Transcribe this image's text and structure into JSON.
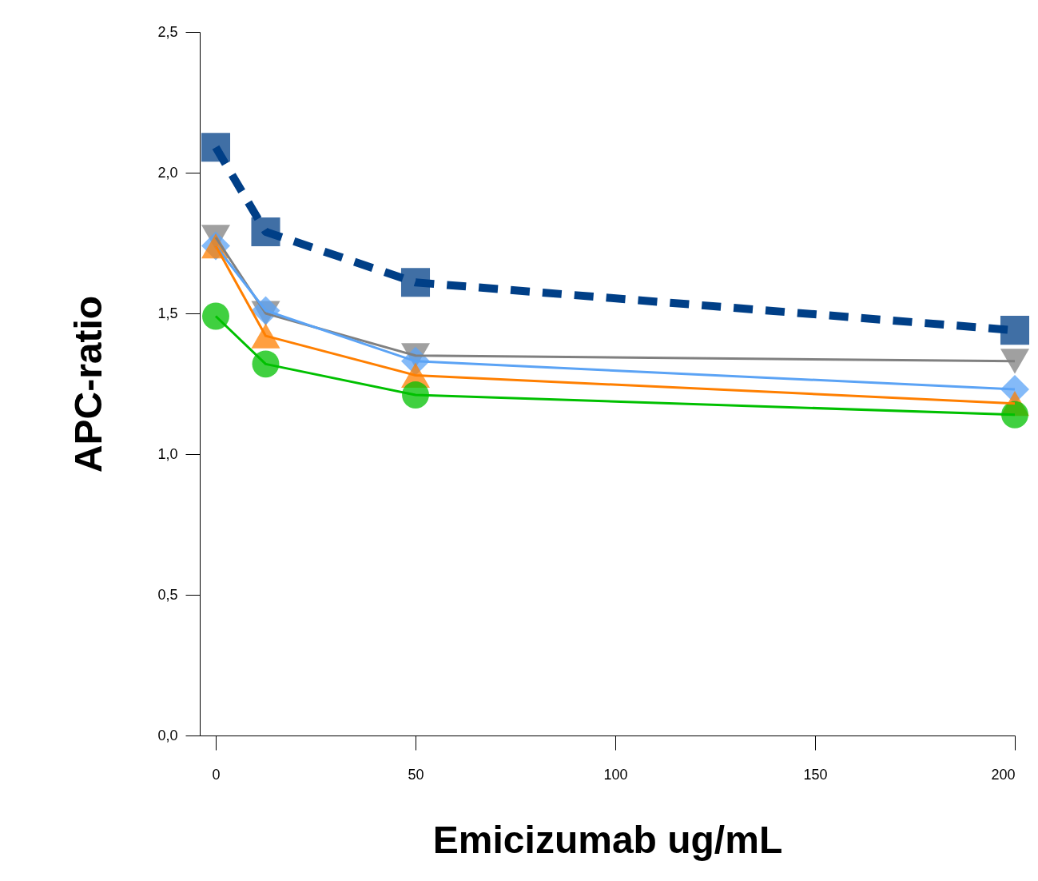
{
  "chart_data": {
    "type": "line",
    "xlabel": "Emicizumab ug/mL",
    "ylabel": "APC-ratio",
    "x": [
      0,
      12.5,
      50,
      200
    ],
    "xlim": [
      -4,
      200
    ],
    "xticks": [
      0,
      50,
      100,
      150,
      200
    ],
    "ylim": [
      0,
      2.5
    ],
    "yticks": [
      {
        "value": 0,
        "label": "0,0"
      },
      {
        "value": 0.5,
        "label": "0,5"
      },
      {
        "value": 1,
        "label": "1,0"
      },
      {
        "value": 1.5,
        "label": "1,5"
      },
      {
        "value": 2,
        "label": "2,0"
      },
      {
        "value": 2.5,
        "label": "2,5"
      }
    ],
    "grid": false,
    "series": [
      {
        "color": "#003f87",
        "marker": "square",
        "line_style": "dashed",
        "values": [
          2.09,
          1.79,
          1.61,
          1.44
        ]
      },
      {
        "color": "#808080",
        "marker": "triangle-down",
        "line_style": "solid",
        "values": [
          1.77,
          1.5,
          1.35,
          1.33
        ]
      },
      {
        "color": "#5ba3f5",
        "marker": "diamond",
        "line_style": "solid",
        "values": [
          1.74,
          1.51,
          1.33,
          1.23
        ]
      },
      {
        "color": "#ff7f00",
        "marker": "triangle",
        "line_style": "solid",
        "values": [
          1.74,
          1.42,
          1.28,
          1.18
        ]
      },
      {
        "color": "#00c000",
        "marker": "circle",
        "line_style": "solid",
        "values": [
          1.49,
          1.32,
          1.21,
          1.14
        ]
      }
    ]
  }
}
